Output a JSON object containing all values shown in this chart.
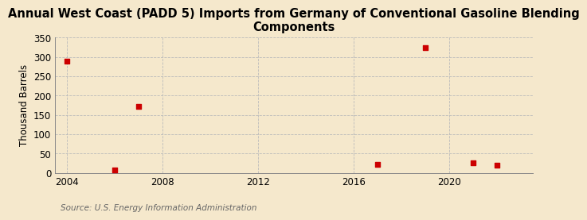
{
  "title": "Annual West Coast (PADD 5) Imports from Germany of Conventional Gasoline Blending\nComponents",
  "ylabel": "Thousand Barrels",
  "source": "Source: U.S. Energy Information Administration",
  "background_color": "#f5e8cc",
  "plot_background_color": "#f5e8cc",
  "data_points": [
    {
      "year": 2004,
      "value": 290
    },
    {
      "year": 2006,
      "value": 7
    },
    {
      "year": 2007,
      "value": 172
    },
    {
      "year": 2017,
      "value": 22
    },
    {
      "year": 2019,
      "value": 325
    },
    {
      "year": 2021,
      "value": 27
    },
    {
      "year": 2022,
      "value": 19
    }
  ],
  "marker_color": "#cc0000",
  "marker_size": 5,
  "xlim": [
    2003.5,
    2023.5
  ],
  "ylim": [
    0,
    350
  ],
  "xticks": [
    2004,
    2008,
    2012,
    2016,
    2020
  ],
  "yticks": [
    0,
    50,
    100,
    150,
    200,
    250,
    300,
    350
  ],
  "grid_color": "#bbbbbb",
  "grid_linestyle": "--",
  "grid_linewidth": 0.6,
  "title_fontsize": 10.5,
  "label_fontsize": 8.5,
  "tick_fontsize": 8.5,
  "source_fontsize": 7.5
}
